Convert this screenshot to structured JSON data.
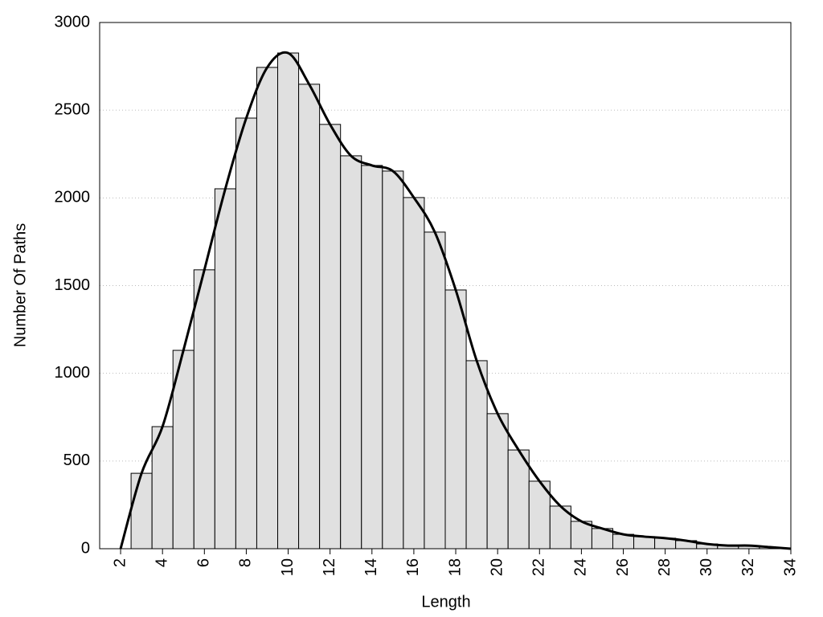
{
  "chart_data": {
    "type": "histogram",
    "xlabel": "Length",
    "ylabel": "Number Of Paths",
    "bins": [
      2.5,
      3.5,
      4.5,
      5.5,
      6.5,
      7.5,
      8.5,
      9.5,
      10.5,
      11.5,
      12.5,
      13.5,
      14.5,
      15.5,
      16.5,
      17.5,
      18.5,
      19.5,
      20.5,
      21.5,
      22.5,
      23.5,
      24.5,
      25.5,
      26.5,
      27.5,
      28.5,
      29.5,
      30.5,
      31.5,
      32.5,
      33.5
    ],
    "counts": [
      430,
      696,
      1131,
      1590,
      2052,
      2455,
      2744,
      2826,
      2648,
      2419,
      2240,
      2185,
      2153,
      2002,
      1805,
      1475,
      1072,
      770,
      563,
      385,
      243,
      156,
      115,
      82,
      69,
      60,
      46,
      27,
      18,
      18,
      9
    ],
    "color": "#e0e0e0",
    "line": {
      "color": "#000000",
      "x": [
        2,
        3,
        4,
        5,
        6,
        7,
        8,
        9,
        10,
        11,
        12,
        13,
        14,
        15,
        16,
        17,
        18,
        19,
        20,
        21,
        22,
        23,
        24,
        25,
        26,
        27,
        28,
        29,
        30,
        31,
        32,
        33,
        34
      ],
      "values": [
        0,
        430,
        696,
        1131,
        1590,
        2052,
        2455,
        2744,
        2826,
        2648,
        2419,
        2240,
        2185,
        2153,
        2002,
        1805,
        1475,
        1072,
        770,
        563,
        385,
        243,
        156,
        115,
        82,
        69,
        60,
        46,
        27,
        18,
        18,
        9,
        0
      ]
    },
    "xlim": [
      1,
      34
    ],
    "ylim": [
      0,
      3000
    ],
    "xticks": [
      2,
      4,
      6,
      8,
      10,
      12,
      14,
      16,
      18,
      20,
      22,
      24,
      26,
      28,
      30,
      32,
      34
    ],
    "yticks": [
      0,
      500,
      1000,
      1500,
      2000,
      2500,
      3000
    ],
    "grid": true
  }
}
